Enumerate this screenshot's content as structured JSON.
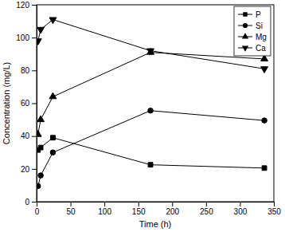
{
  "chart_data": {
    "type": "line",
    "x_label": "Time (h)",
    "y_label": "Concentration (mg/L)",
    "x": [
      2,
      6,
      24,
      168,
      336
    ],
    "series": [
      {
        "name": "P",
        "color": "#000000",
        "marker": "square",
        "values": [
          31.5,
          33,
          39,
          22.5,
          20.5
        ]
      },
      {
        "name": "Si",
        "color": "#000000",
        "marker": "circle",
        "values": [
          9.5,
          16,
          30,
          55.5,
          49.5
        ]
      },
      {
        "name": "Mg",
        "color": "#000000",
        "marker": "triangle-up",
        "values": [
          41,
          50,
          64,
          91,
          87
        ]
      },
      {
        "name": "Ca",
        "color": "#000000",
        "marker": "triangle-down",
        "values": [
          98,
          105,
          111,
          92,
          81
        ]
      }
    ],
    "xlim": [
      0,
      350
    ],
    "xticks": [
      0,
      50,
      100,
      150,
      200,
      250,
      300,
      350
    ],
    "ylim": [
      0,
      120
    ],
    "yticks": [
      0,
      20,
      40,
      60,
      80,
      100,
      120
    ],
    "legend": "upper right"
  }
}
